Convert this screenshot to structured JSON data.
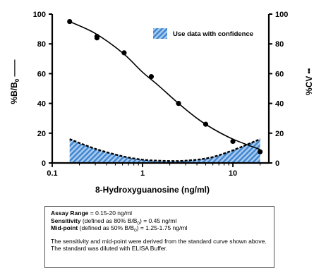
{
  "chart_data": {
    "type": "line",
    "xlabel": "8-Hydroxyguanosine (ng/ml)",
    "ylabel_left": "%B/B",
    "ylabel_left_sub": "0",
    "ylabel_right": "%CV",
    "xscale": "log",
    "xlim": [
      0.1,
      25
    ],
    "ylim": [
      0,
      100
    ],
    "x_ticks": [
      "0.1",
      "1",
      "10"
    ],
    "x_tick_values": [
      0.1,
      1,
      10
    ],
    "y_ticks": [
      "0",
      "20",
      "40",
      "60",
      "80",
      "100"
    ],
    "y_tick_values": [
      0,
      20,
      40,
      60,
      80,
      100
    ],
    "grid": false,
    "legend": {
      "position": "top-right",
      "label": "Use data with confidence"
    },
    "series": [
      {
        "role": "%B/B0 standard curve points",
        "x": [
          0.156,
          0.313,
          0.313,
          0.625,
          1.25,
          2.5,
          5,
          10,
          20
        ],
        "y": [
          95,
          84,
          85,
          74,
          58,
          40,
          26,
          14.5,
          7.5
        ]
      },
      {
        "role": "%B/B0 fitted curve",
        "x": [
          0.156,
          0.3,
          0.6,
          1,
          1.5,
          2.5,
          4,
          6,
          10,
          20
        ],
        "y": [
          95,
          87,
          74,
          61,
          52,
          40,
          30,
          23,
          16,
          9
        ]
      },
      {
        "role": "%CV",
        "x": [
          0.156,
          0.3,
          0.6,
          1,
          1.5,
          2.5,
          4,
          6,
          10,
          20
        ],
        "y": [
          16,
          9.5,
          4.5,
          2.2,
          1.5,
          1.3,
          2.2,
          4,
          8.5,
          16
        ]
      }
    ],
    "colors": {
      "ink": "#000000",
      "hatch_light": "#a9cbee",
      "hatch_dark": "#3e84d0"
    }
  },
  "info": {
    "range_label": "Assay Range",
    "range_value": "= 0.15-20 ng/ml",
    "sensitivity_label": "Sensitivity",
    "sensitivity_value_pre": "(defined as 80% B/B",
    "sensitivity_sub": "0",
    "sensitivity_value_post": ") = 0.45 ng/ml",
    "midpoint_label": "Mid-point",
    "midpoint_value_pre": "(defined as 50% B/B",
    "midpoint_sub": "0",
    "midpoint_value_post": ") = 1.25-1.75 ng/ml",
    "note": "The sensitivity and mid-point were derived from the standard curve shown above. The standard was diluted with ELISA Buffer."
  }
}
